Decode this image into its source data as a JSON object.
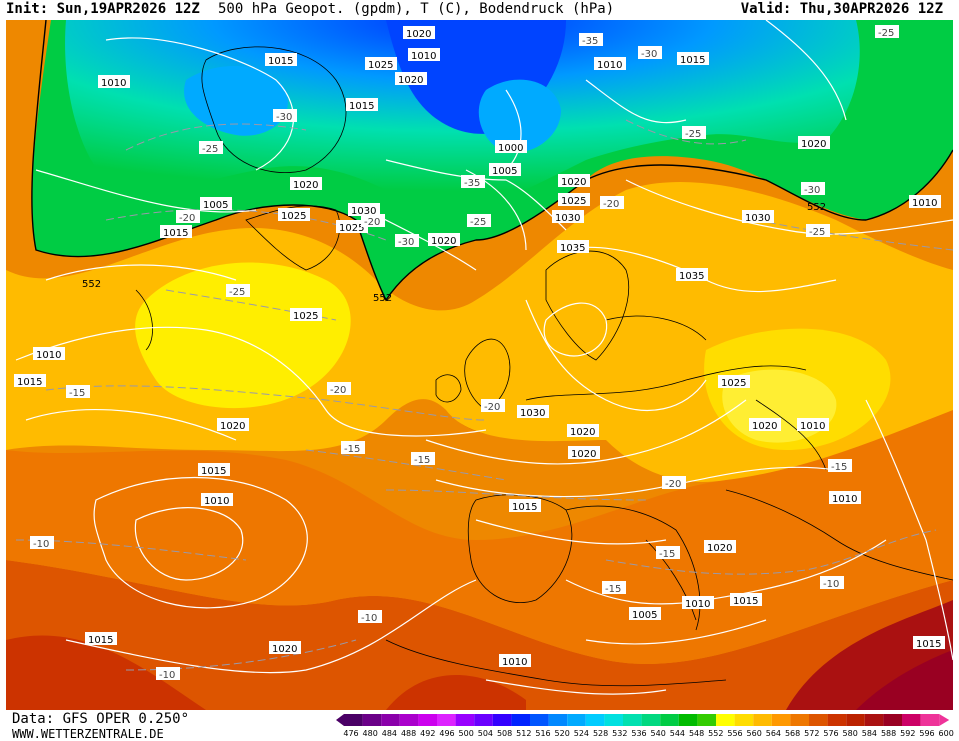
{
  "header": {
    "init": "Init: Sun,19APR2026 12Z",
    "title": "500 hPa Geopot. (gpdm), T (C), Bodendruck (hPa)",
    "valid": "Valid: Thu,30APR2026 12Z"
  },
  "footer": {
    "data": "Data: GFS OPER 0.250°",
    "site": "WWW.WETTERZENTRALE.DE"
  },
  "scale": {
    "ticks": [
      "476",
      "480",
      "484",
      "488",
      "492",
      "496",
      "500",
      "504",
      "508",
      "512",
      "516",
      "520",
      "524",
      "528",
      "532",
      "536",
      "540",
      "544",
      "548",
      "552",
      "556",
      "560",
      "564",
      "568",
      "572",
      "576",
      "580",
      "584",
      "588",
      "592",
      "596",
      "600"
    ],
    "colors": [
      "#4a0066",
      "#6a0088",
      "#8a00aa",
      "#aa00cc",
      "#cc00ee",
      "#dd22ff",
      "#9900ff",
      "#6a00ff",
      "#3300ff",
      "#0022ff",
      "#0055ff",
      "#0088ff",
      "#00aaff",
      "#00ccff",
      "#00e0e0",
      "#00e0b0",
      "#00d880",
      "#00cc44",
      "#00bb00",
      "#33cc00",
      "#ffff00",
      "#ffdd00",
      "#ffbb00",
      "#ff9900",
      "#ee7700",
      "#dd5500",
      "#cc3300",
      "#bb2200",
      "#aa1111",
      "#990022",
      "#cc0066",
      "#ee3399"
    ]
  },
  "map": {
    "contour552": "552",
    "isobars": [
      "1010",
      "1015",
      "1020",
      "1010",
      "1025",
      "1020",
      "1015",
      "1000",
      "1005",
      "1010",
      "1020",
      "1025",
      "1030",
      "1020",
      "1005",
      "1030",
      "1025",
      "1020",
      "1030",
      "1035",
      "1025",
      "1035",
      "1030",
      "1025",
      "1020",
      "1020",
      "1015",
      "1015",
      "1020",
      "1025",
      "1015",
      "1010",
      "1015",
      "1010",
      "1005",
      "1010",
      "1015",
      "1020",
      "1010",
      "1015",
      "1020",
      "1005",
      "1010",
      "1015",
      "1010",
      "1010",
      "1020",
      "1015",
      "1020"
    ],
    "temps": [
      "-35",
      "-30",
      "-30",
      "-25",
      "-25",
      "-20",
      "-25",
      "-30",
      "-35",
      "-25",
      "-20",
      "-20",
      "-25",
      "-30",
      "-25",
      "-20",
      "-15",
      "-20",
      "-15",
      "-15",
      "-20",
      "-15",
      "-15",
      "-10",
      "-10",
      "-10",
      "-15",
      "-10"
    ]
  }
}
